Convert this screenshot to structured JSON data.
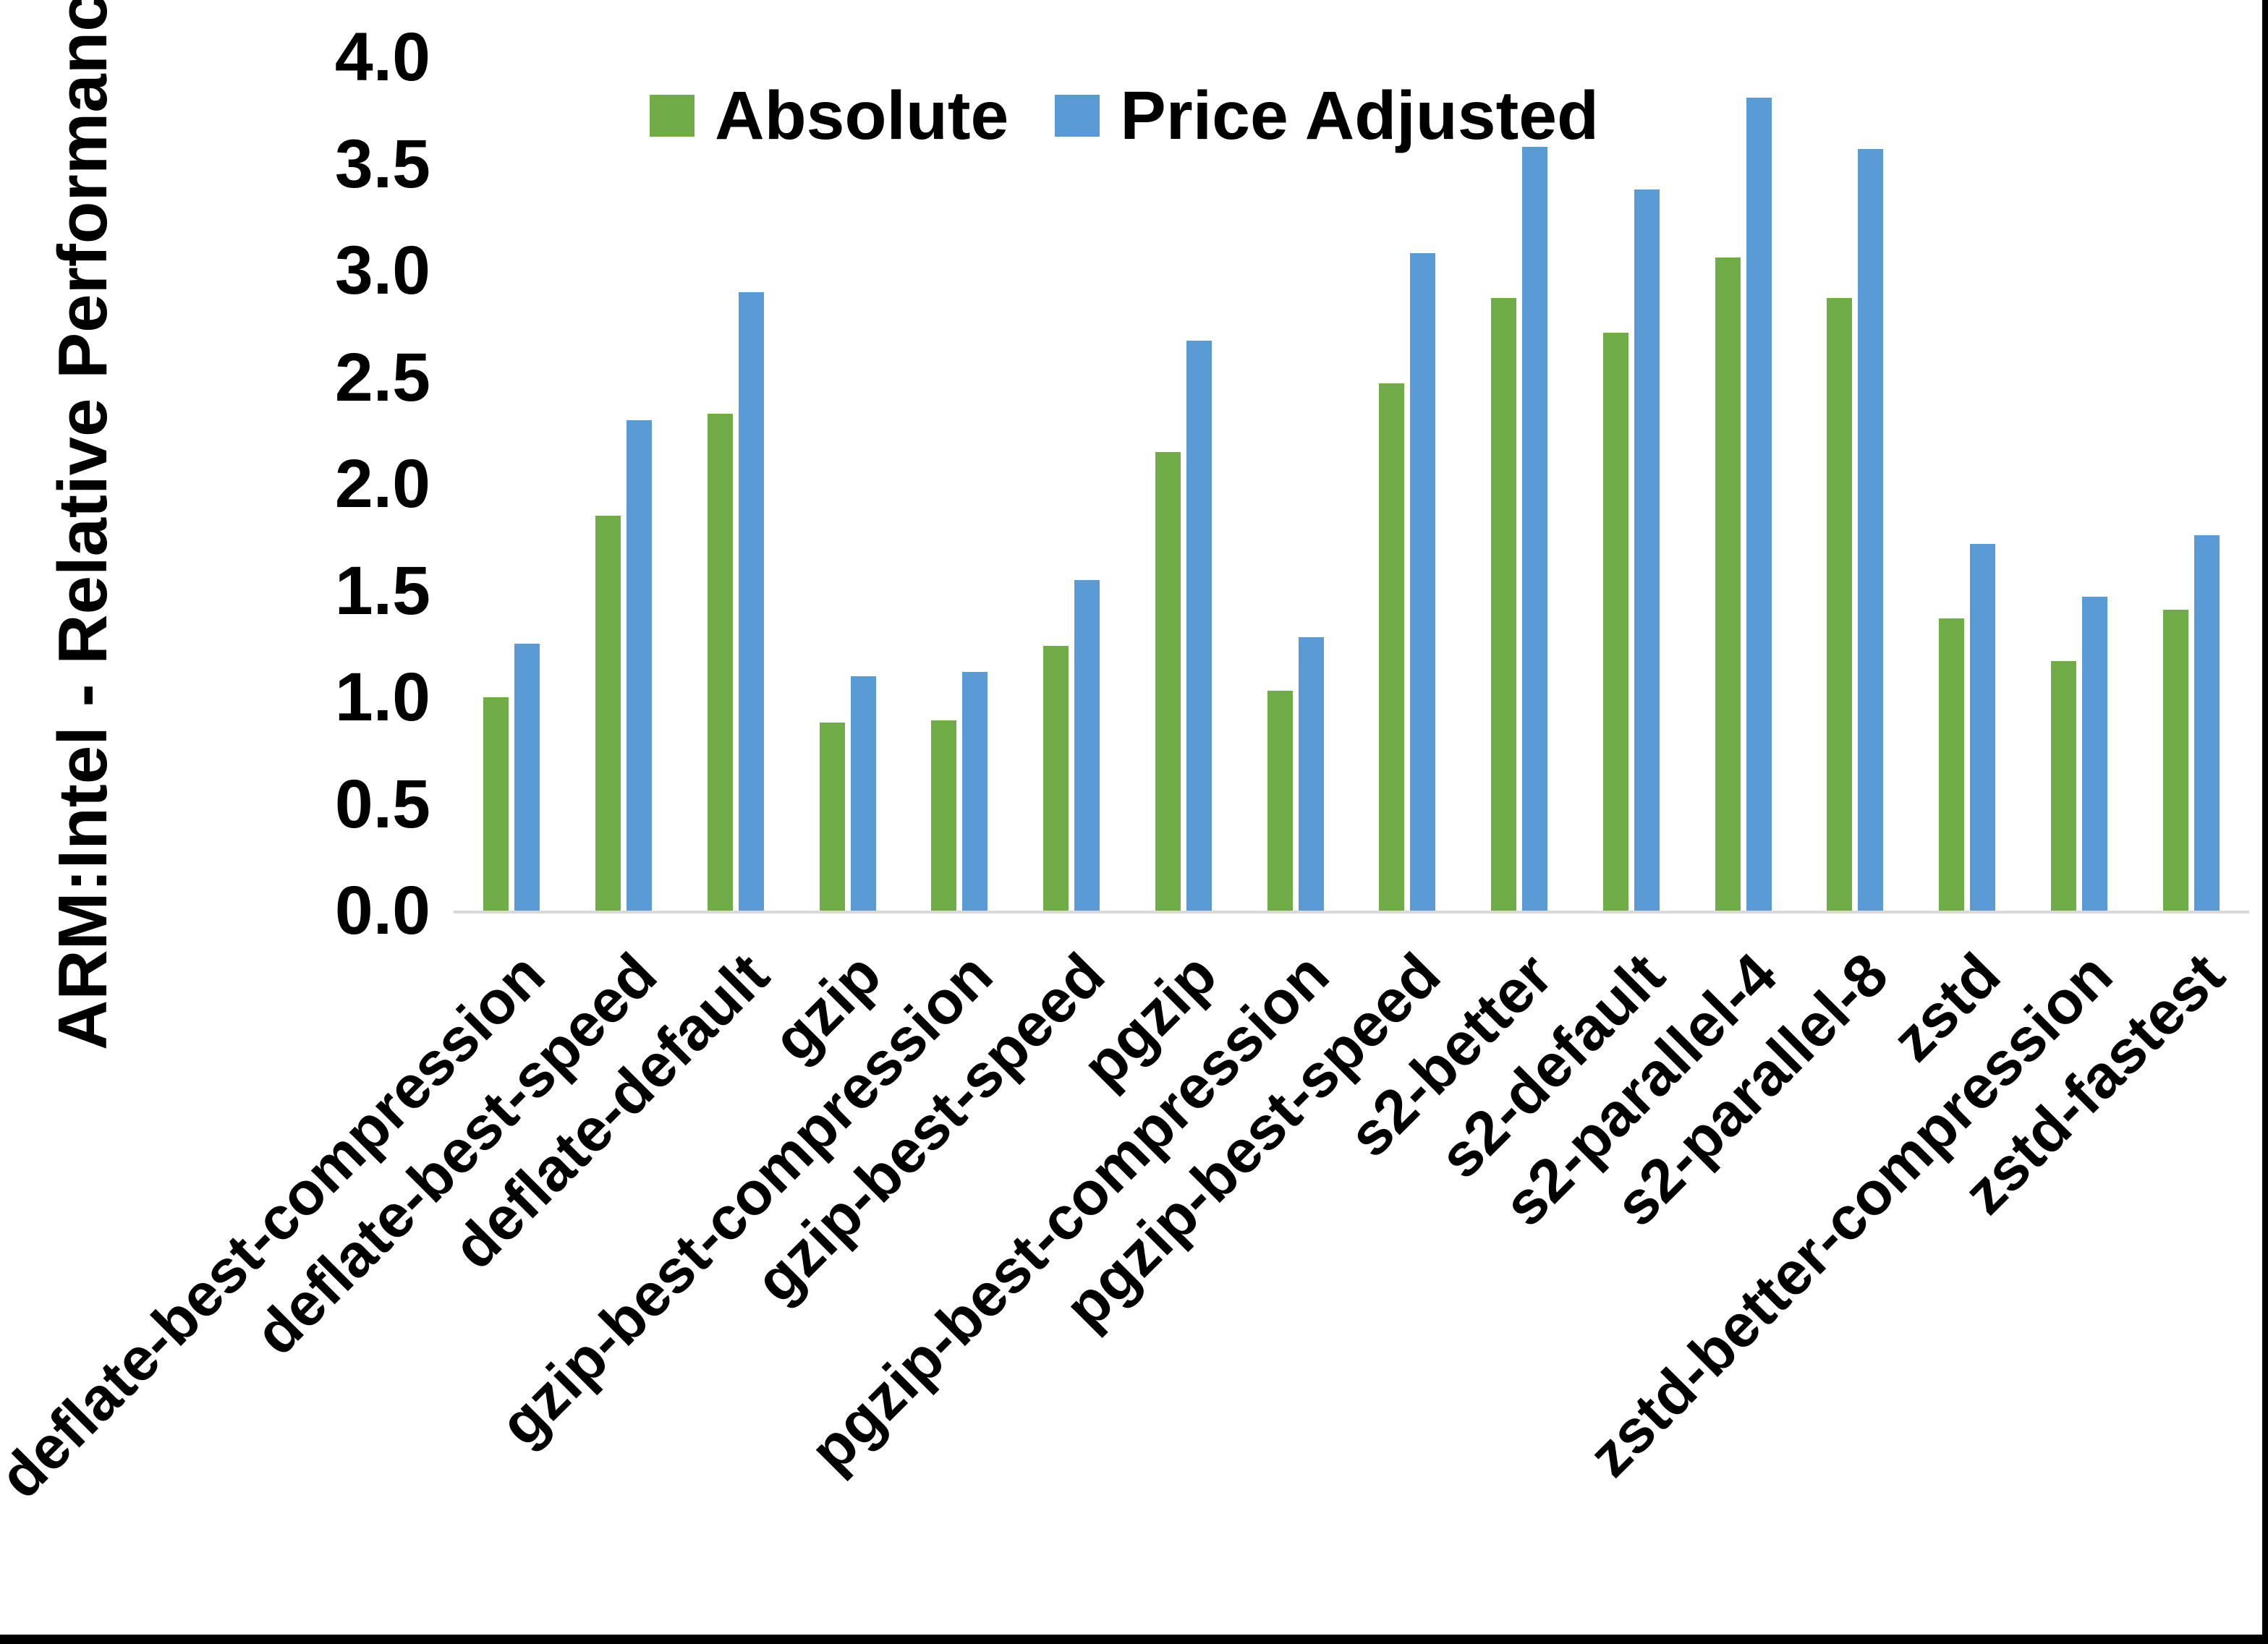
{
  "chart_data": {
    "type": "bar",
    "title": "",
    "xlabel": "",
    "ylabel": "ARM:Intel - Relative Performance",
    "ylim": [
      0.0,
      4.0
    ],
    "ytick_step": 0.5,
    "yticks": [
      "0.0",
      "0.5",
      "1.0",
      "1.5",
      "2.0",
      "2.5",
      "3.0",
      "3.5",
      "4.0"
    ],
    "grid": false,
    "legend_position": "top-center",
    "categories": [
      "deflate-best-compression",
      "deflate-best-speed",
      "deflate-default",
      "gzip",
      "gzip-best-compression",
      "gzip-best-speed",
      "pgzip",
      "pgzip-best-compression",
      "pgzip-best-speed",
      "s2-better",
      "s2-default",
      "s2-parallel-4",
      "s2-parallel-8",
      "zstd",
      "zstd-better-compression",
      "zstd-fastest"
    ],
    "series": [
      {
        "name": "Absolute",
        "color": "#70AD47",
        "values": [
          1.0,
          1.85,
          2.33,
          0.88,
          0.89,
          1.24,
          2.15,
          1.03,
          2.47,
          2.87,
          2.71,
          3.06,
          2.87,
          1.37,
          1.17,
          1.41
        ]
      },
      {
        "name": "Price Adjusted",
        "color": "#5B9BD5",
        "values": [
          1.25,
          2.3,
          2.9,
          1.1,
          1.12,
          1.55,
          2.67,
          1.28,
          3.08,
          3.58,
          3.38,
          3.81,
          3.57,
          1.72,
          1.47,
          1.76
        ]
      }
    ]
  },
  "colors": {
    "axis_line": "#D9D9D9",
    "text": "#000000",
    "background": "#FFFFFF",
    "border": "#000000"
  }
}
